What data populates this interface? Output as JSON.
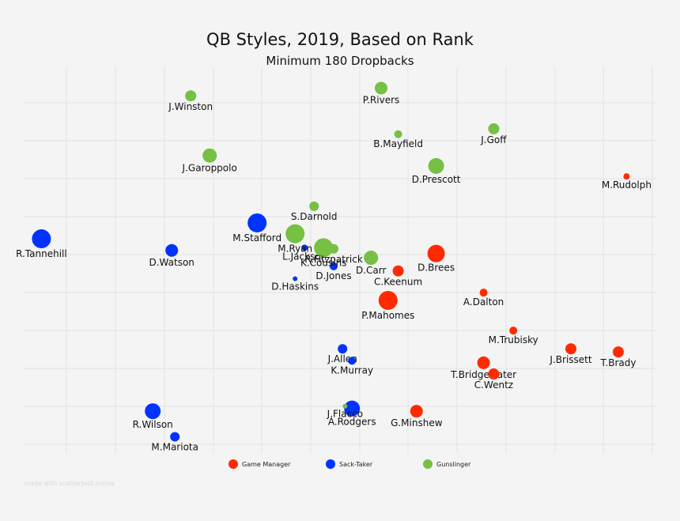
{
  "chart_data": {
    "type": "scatter",
    "title": "QB Styles, 2019, Based on Rank",
    "subtitle": "Minimum 180 Dropbacks",
    "xlabel": "",
    "ylabel": "",
    "xlim": [
      0,
      100
    ],
    "ylim": [
      0,
      100
    ],
    "grid": true,
    "legend_position": "bottom",
    "colors": {
      "Game Manager": "#ff2a00",
      "Sack-Taker": "#0033ff",
      "Gunslinger": "#76c043"
    },
    "series": [
      {
        "name": "Game Manager",
        "points": [
          {
            "label": "M.Rudolph",
            "x": 95.3,
            "y": 71.6,
            "size": 4
          },
          {
            "label": "D.Brees",
            "x": 65.2,
            "y": 51.7,
            "size": 11
          },
          {
            "label": "C.Keenum",
            "x": 59.2,
            "y": 47.2,
            "size": 7
          },
          {
            "label": "A.Dalton",
            "x": 72.7,
            "y": 41.6,
            "size": 5
          },
          {
            "label": "P.Mahomes",
            "x": 57.6,
            "y": 39.6,
            "size": 12
          },
          {
            "label": "M.Trubisky",
            "x": 77.4,
            "y": 31.8,
            "size": 5
          },
          {
            "label": "J.Brissett",
            "x": 86.5,
            "y": 27.1,
            "size": 7
          },
          {
            "label": "T.Brady",
            "x": 94.0,
            "y": 26.3,
            "size": 7
          },
          {
            "label": "T.Bridgewater",
            "x": 72.7,
            "y": 23.5,
            "size": 8
          },
          {
            "label": "C.Wentz",
            "x": 74.3,
            "y": 20.6,
            "size": 7
          },
          {
            "label": "G.Minshew",
            "x": 62.1,
            "y": 11.0,
            "size": 8
          }
        ]
      },
      {
        "name": "Sack-Taker",
        "points": [
          {
            "label": "R.Tannehill",
            "x": 2.8,
            "y": 55.5,
            "size": 12
          },
          {
            "label": "D.Watson",
            "x": 23.4,
            "y": 52.5,
            "size": 8
          },
          {
            "label": "M.Stafford",
            "x": 36.9,
            "y": 59.6,
            "size": 12
          },
          {
            "label": "L.Jackson",
            "x": 44.4,
            "y": 53.2,
            "size": 4
          },
          {
            "label": "D.Jones",
            "x": 49.0,
            "y": 48.4,
            "size": 5
          },
          {
            "label": "D.Haskins",
            "x": 42.9,
            "y": 45.2,
            "size": 3
          },
          {
            "label": "J.Allen",
            "x": 50.4,
            "y": 27.1,
            "size": 6
          },
          {
            "label": "K.Murray",
            "x": 51.9,
            "y": 24.0,
            "size": 5
          },
          {
            "label": "A.Rodgers",
            "x": 51.9,
            "y": 11.7,
            "size": 10
          },
          {
            "label": "R.Wilson",
            "x": 20.4,
            "y": 11.0,
            "size": 10
          },
          {
            "label": "M.Mariota",
            "x": 23.9,
            "y": 4.4,
            "size": 6
          }
        ]
      },
      {
        "name": "Gunslinger",
        "points": [
          {
            "label": "J.Winston",
            "x": 26.4,
            "y": 92.4,
            "size": 7
          },
          {
            "label": "P.Rivers",
            "x": 56.5,
            "y": 94.4,
            "size": 8
          },
          {
            "label": "B.Mayfield",
            "x": 59.2,
            "y": 82.5,
            "size": 5
          },
          {
            "label": "J.Goff",
            "x": 74.3,
            "y": 83.9,
            "size": 7
          },
          {
            "label": "J.Garoppolo",
            "x": 29.4,
            "y": 77.0,
            "size": 9
          },
          {
            "label": "D.Prescott",
            "x": 65.2,
            "y": 74.3,
            "size": 10
          },
          {
            "label": "S.Darnold",
            "x": 45.9,
            "y": 63.9,
            "size": 6
          },
          {
            "label": "M.Ryan",
            "x": 42.9,
            "y": 56.8,
            "size": 12
          },
          {
            "label": "K.Cousins",
            "x": 47.4,
            "y": 53.2,
            "size": 12
          },
          {
            "label": "R.Fitzpatrick",
            "x": 49.0,
            "y": 52.9,
            "size": 6
          },
          {
            "label": "D.Carr",
            "x": 54.9,
            "y": 50.6,
            "size": 9
          },
          {
            "label": "J.Flacco",
            "x": 50.8,
            "y": 12.3,
            "size": 3
          }
        ]
      }
    ]
  },
  "watermark": "made with scatterplot.online"
}
